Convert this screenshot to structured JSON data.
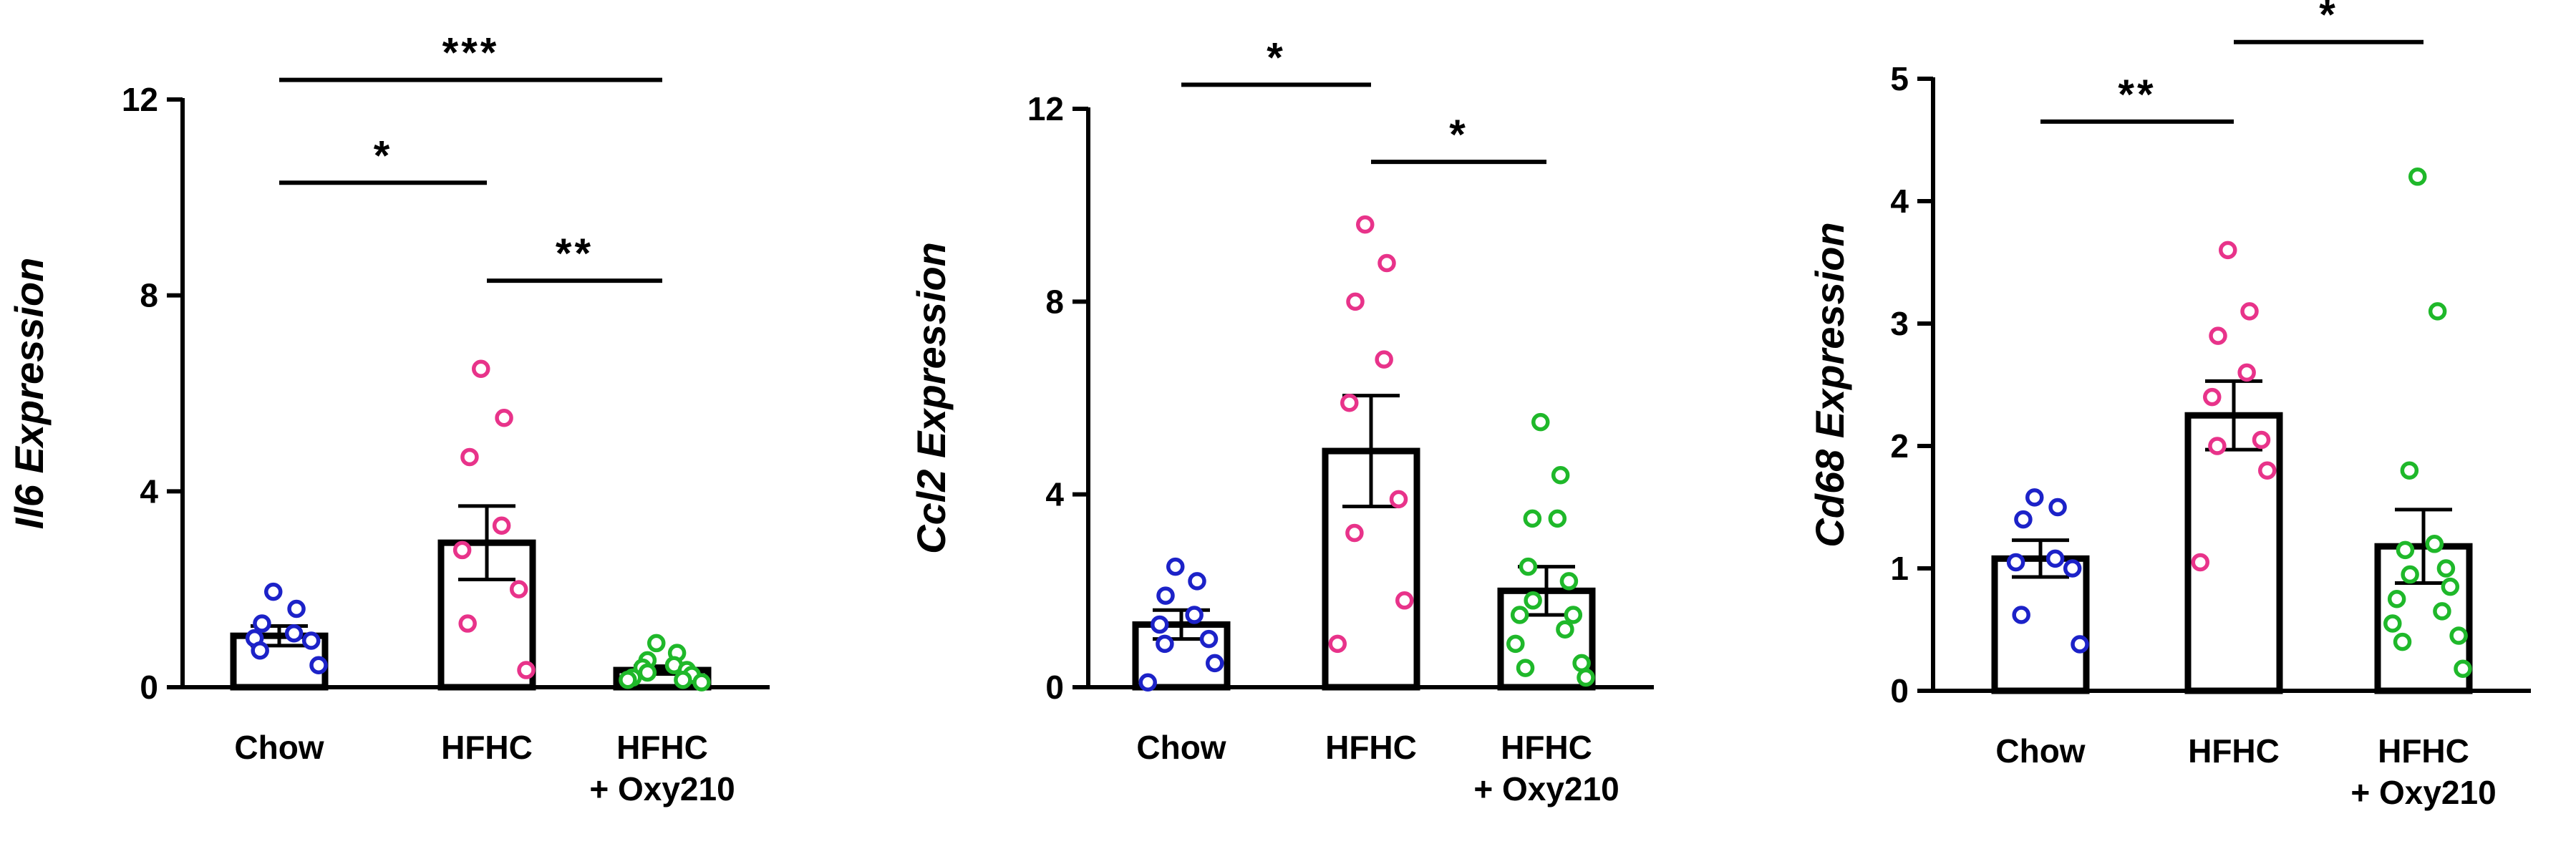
{
  "chart_data": [
    {
      "type": "bar",
      "ylabel": "Il6 Expression",
      "categories": [
        "Chow",
        "HFHC",
        "HFHC\n+ Oxy210"
      ],
      "ylim": [
        0,
        12
      ],
      "yticks": [
        "0",
        "4",
        "8",
        "12"
      ],
      "series": [
        {
          "mean": 1.05,
          "sem": 0.2,
          "color": "#1c22c8",
          "points": [
            1.95,
            1.6,
            1.3,
            1.1,
            1.0,
            0.95,
            0.75,
            0.45
          ]
        },
        {
          "mean": 2.95,
          "sem": 0.75,
          "color": "#e8338a",
          "points": [
            6.5,
            5.5,
            4.7,
            3.3,
            2.8,
            2.0,
            1.3,
            0.35
          ]
        },
        {
          "mean": 0.35,
          "sem": 0.08,
          "color": "#1fb82a",
          "points": [
            0.9,
            0.7,
            0.55,
            0.45,
            0.4,
            0.35,
            0.3,
            0.25,
            0.2,
            0.15,
            0.15,
            0.1
          ]
        }
      ],
      "comparisons": [
        {
          "from": 0,
          "to": 2,
          "y": 12.4,
          "label": "***"
        },
        {
          "from": 0,
          "to": 1,
          "y": 10.3,
          "label": "*"
        },
        {
          "from": 1,
          "to": 2,
          "y": 8.3,
          "label": "**"
        }
      ]
    },
    {
      "type": "bar",
      "ylabel": "Ccl2 Expression",
      "categories": [
        "Chow",
        "HFHC",
        "HFHC\n+ Oxy210"
      ],
      "ylim": [
        0,
        12
      ],
      "yticks": [
        "0",
        "4",
        "8",
        "12"
      ],
      "series": [
        {
          "mean": 1.3,
          "sem": 0.3,
          "color": "#1c22c8",
          "points": [
            2.5,
            2.2,
            1.9,
            1.5,
            1.3,
            1.0,
            0.9,
            0.5,
            0.1
          ]
        },
        {
          "mean": 4.9,
          "sem": 1.15,
          "color": "#e8338a",
          "points": [
            9.6,
            8.8,
            8.0,
            6.8,
            5.9,
            3.9,
            3.2,
            1.8,
            0.9
          ]
        },
        {
          "mean": 2.0,
          "sem": 0.5,
          "color": "#1fb82a",
          "points": [
            5.5,
            4.4,
            3.5,
            3.5,
            2.5,
            2.2,
            1.8,
            1.5,
            1.5,
            1.2,
            0.9,
            0.5,
            0.4,
            0.2
          ]
        }
      ],
      "comparisons": [
        {
          "from": 0,
          "to": 1,
          "y": 12.5,
          "label": "*"
        },
        {
          "from": 1,
          "to": 2,
          "y": 10.9,
          "label": "*"
        }
      ]
    },
    {
      "type": "bar",
      "ylabel": "Cd68 Expression",
      "categories": [
        "Chow",
        "HFHC",
        "HFHC\n+ Oxy210"
      ],
      "ylim": [
        0,
        5
      ],
      "yticks": [
        "0",
        "1",
        "2",
        "3",
        "4",
        "5"
      ],
      "series": [
        {
          "mean": 1.08,
          "sem": 0.15,
          "color": "#1c22c8",
          "points": [
            1.58,
            1.5,
            1.4,
            1.08,
            1.05,
            1.0,
            0.62,
            0.38
          ]
        },
        {
          "mean": 2.25,
          "sem": 0.28,
          "color": "#e8338a",
          "points": [
            3.6,
            3.1,
            2.9,
            2.6,
            2.4,
            2.05,
            2.0,
            1.8,
            1.05
          ]
        },
        {
          "mean": 1.18,
          "sem": 0.3,
          "color": "#1fb82a",
          "points": [
            4.2,
            3.1,
            1.8,
            1.2,
            1.15,
            1.0,
            0.95,
            0.85,
            0.75,
            0.65,
            0.55,
            0.45,
            0.4,
            0.18
          ]
        }
      ],
      "comparisons": [
        {
          "from": 0,
          "to": 1,
          "y": 4.65,
          "label": "**"
        },
        {
          "from": 1,
          "to": 2,
          "y": 5.3,
          "label": "*"
        }
      ]
    }
  ]
}
